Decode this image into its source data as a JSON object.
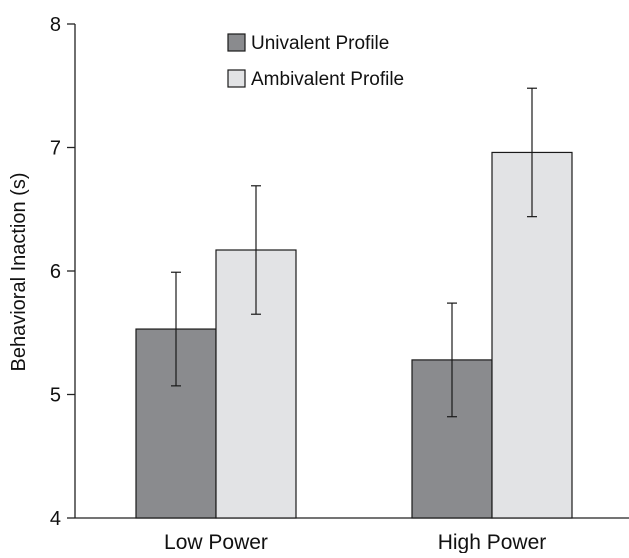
{
  "chart_data": {
    "type": "bar",
    "categories": [
      "Low Power",
      "High Power"
    ],
    "series": [
      {
        "name": "Univalent Profile",
        "values": [
          5.53,
          5.28
        ],
        "errors": [
          0.46,
          0.46
        ],
        "color": "#8a8b8e"
      },
      {
        "name": "Ambivalent Profile",
        "values": [
          6.17,
          6.96
        ],
        "errors": [
          0.52,
          0.52
        ],
        "color": "#e2e3e5"
      }
    ],
    "title": "",
    "xlabel": "",
    "ylabel": "Behavioral Inaction (s)",
    "ylim": [
      4,
      8
    ],
    "yticks": [
      4,
      5,
      6,
      7,
      8
    ],
    "grid": false,
    "legend_position": "top-center",
    "bar_stroke": "#1a1a1a"
  }
}
